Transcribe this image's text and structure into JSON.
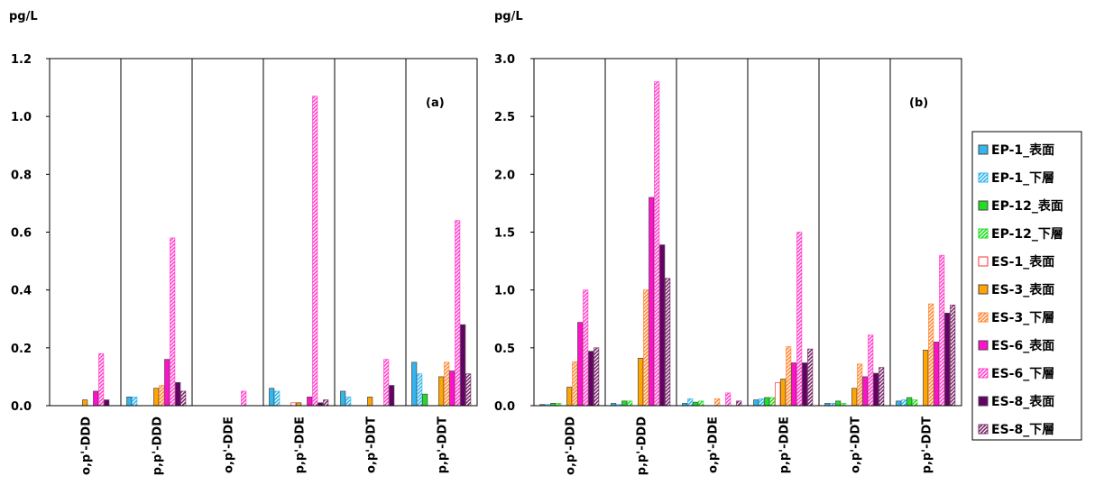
{
  "series_styles": [
    {
      "color": "#33b5ee",
      "pattern": "solid"
    },
    {
      "color": "#33b5ee",
      "pattern": "hatch"
    },
    {
      "color": "#22dd22",
      "pattern": "solid"
    },
    {
      "color": "#22dd22",
      "pattern": "hatch"
    },
    {
      "color": "#ff3333",
      "pattern": "hollow"
    },
    {
      "color": "#ffa500",
      "pattern": "solid"
    },
    {
      "color": "#ff8833",
      "pattern": "hatch"
    },
    {
      "color": "#ff11cc",
      "pattern": "solid"
    },
    {
      "color": "#ff44cc",
      "pattern": "hatch"
    },
    {
      "color": "#660066",
      "pattern": "solid"
    },
    {
      "color": "#7a2a6a",
      "pattern": "hatch"
    }
  ],
  "legend": {
    "entries": [
      "EP-1_表面",
      "EP-1_下層",
      "EP-12_表面",
      "EP-12_下層",
      "ES-1_表面",
      "ES-3_表面",
      "ES-3_下層",
      "ES-6_表面",
      "ES-6_下層",
      "ES-8_表面",
      "ES-8_下層"
    ]
  },
  "chart_data": [
    {
      "type": "bar",
      "panel_label": "(a)",
      "ylabel": "pg/L",
      "ylim": [
        0,
        1.2
      ],
      "yticks": [
        "0.0",
        "0.2",
        "0.4",
        "0.6",
        "0.8",
        "1.0",
        "1.2"
      ],
      "grid": "vertical",
      "categories": [
        "o,p'-DDD",
        "p,p'-DDD",
        "o,p'-DDE",
        "p,p'-DDE",
        "o,p'-DDT",
        "p,p'-DDT"
      ],
      "series": [
        {
          "name": "EP-1_表面",
          "values": [
            0,
            0.03,
            0,
            0.06,
            0.05,
            0.15
          ]
        },
        {
          "name": "EP-1_下層",
          "values": [
            0,
            0.03,
            0,
            0.05,
            0.03,
            0.11
          ]
        },
        {
          "name": "EP-12_表面",
          "values": [
            0,
            0,
            0,
            0,
            0,
            0.04
          ]
        },
        {
          "name": "EP-12_下層",
          "values": [
            0,
            0,
            0,
            0,
            0,
            0
          ]
        },
        {
          "name": "ES-1_表面",
          "values": [
            0,
            0,
            0,
            0.01,
            0,
            0
          ]
        },
        {
          "name": "ES-3_表面",
          "values": [
            0.02,
            0.06,
            0,
            0.01,
            0.03,
            0.1
          ]
        },
        {
          "name": "ES-3_下層",
          "values": [
            0,
            0.07,
            0,
            0,
            0,
            0.15
          ]
        },
        {
          "name": "ES-6_表面",
          "values": [
            0.05,
            0.16,
            0,
            0.03,
            0,
            0.12
          ]
        },
        {
          "name": "ES-6_下層",
          "values": [
            0.18,
            0.58,
            0.05,
            1.07,
            0.16,
            0.64
          ]
        },
        {
          "name": "ES-8_表面",
          "values": [
            0.02,
            0.08,
            0,
            0.01,
            0.07,
            0.28
          ]
        },
        {
          "name": "ES-8_下層",
          "values": [
            0,
            0.05,
            0,
            0.02,
            0,
            0.11
          ]
        }
      ]
    },
    {
      "type": "bar",
      "panel_label": "(b)",
      "ylabel": "pg/L",
      "ylim": [
        0,
        3.0
      ],
      "yticks": [
        "0.0",
        "0.5",
        "1.0",
        "1.5",
        "2.0",
        "2.5",
        "3.0"
      ],
      "grid": "vertical",
      "categories": [
        "o,p'-DDD",
        "p,p'-DDD",
        "o,p'-DDE",
        "p,p'-DDE",
        "o,p'-DDT",
        "p,p'-DDT"
      ],
      "series": [
        {
          "name": "EP-1_表面",
          "values": [
            0.01,
            0.02,
            0.02,
            0.05,
            0.02,
            0.04
          ]
        },
        {
          "name": "EP-1_下層",
          "values": [
            0.01,
            0.01,
            0.06,
            0.06,
            0.02,
            0.05
          ]
        },
        {
          "name": "EP-12_表面",
          "values": [
            0.02,
            0.04,
            0.03,
            0.07,
            0.04,
            0.07
          ]
        },
        {
          "name": "EP-12_下層",
          "values": [
            0.02,
            0.04,
            0.04,
            0.07,
            0.02,
            0.05
          ]
        },
        {
          "name": "ES-1_表面",
          "values": [
            0,
            0,
            0,
            0.2,
            0,
            0
          ]
        },
        {
          "name": "ES-3_表面",
          "values": [
            0.16,
            0.41,
            0,
            0.23,
            0.15,
            0.48
          ]
        },
        {
          "name": "ES-3_下層",
          "values": [
            0.38,
            1.0,
            0.06,
            0.51,
            0.36,
            0.88
          ]
        },
        {
          "name": "ES-6_表面",
          "values": [
            0.72,
            1.8,
            0,
            0.37,
            0.25,
            0.55
          ]
        },
        {
          "name": "ES-6_下層",
          "values": [
            1.0,
            2.8,
            0.11,
            1.5,
            0.61,
            1.3
          ]
        },
        {
          "name": "ES-8_表面",
          "values": [
            0.47,
            1.39,
            0,
            0.37,
            0.28,
            0.8
          ]
        },
        {
          "name": "ES-8_下層",
          "values": [
            0.5,
            1.1,
            0.04,
            0.49,
            0.33,
            0.87
          ]
        }
      ]
    }
  ]
}
